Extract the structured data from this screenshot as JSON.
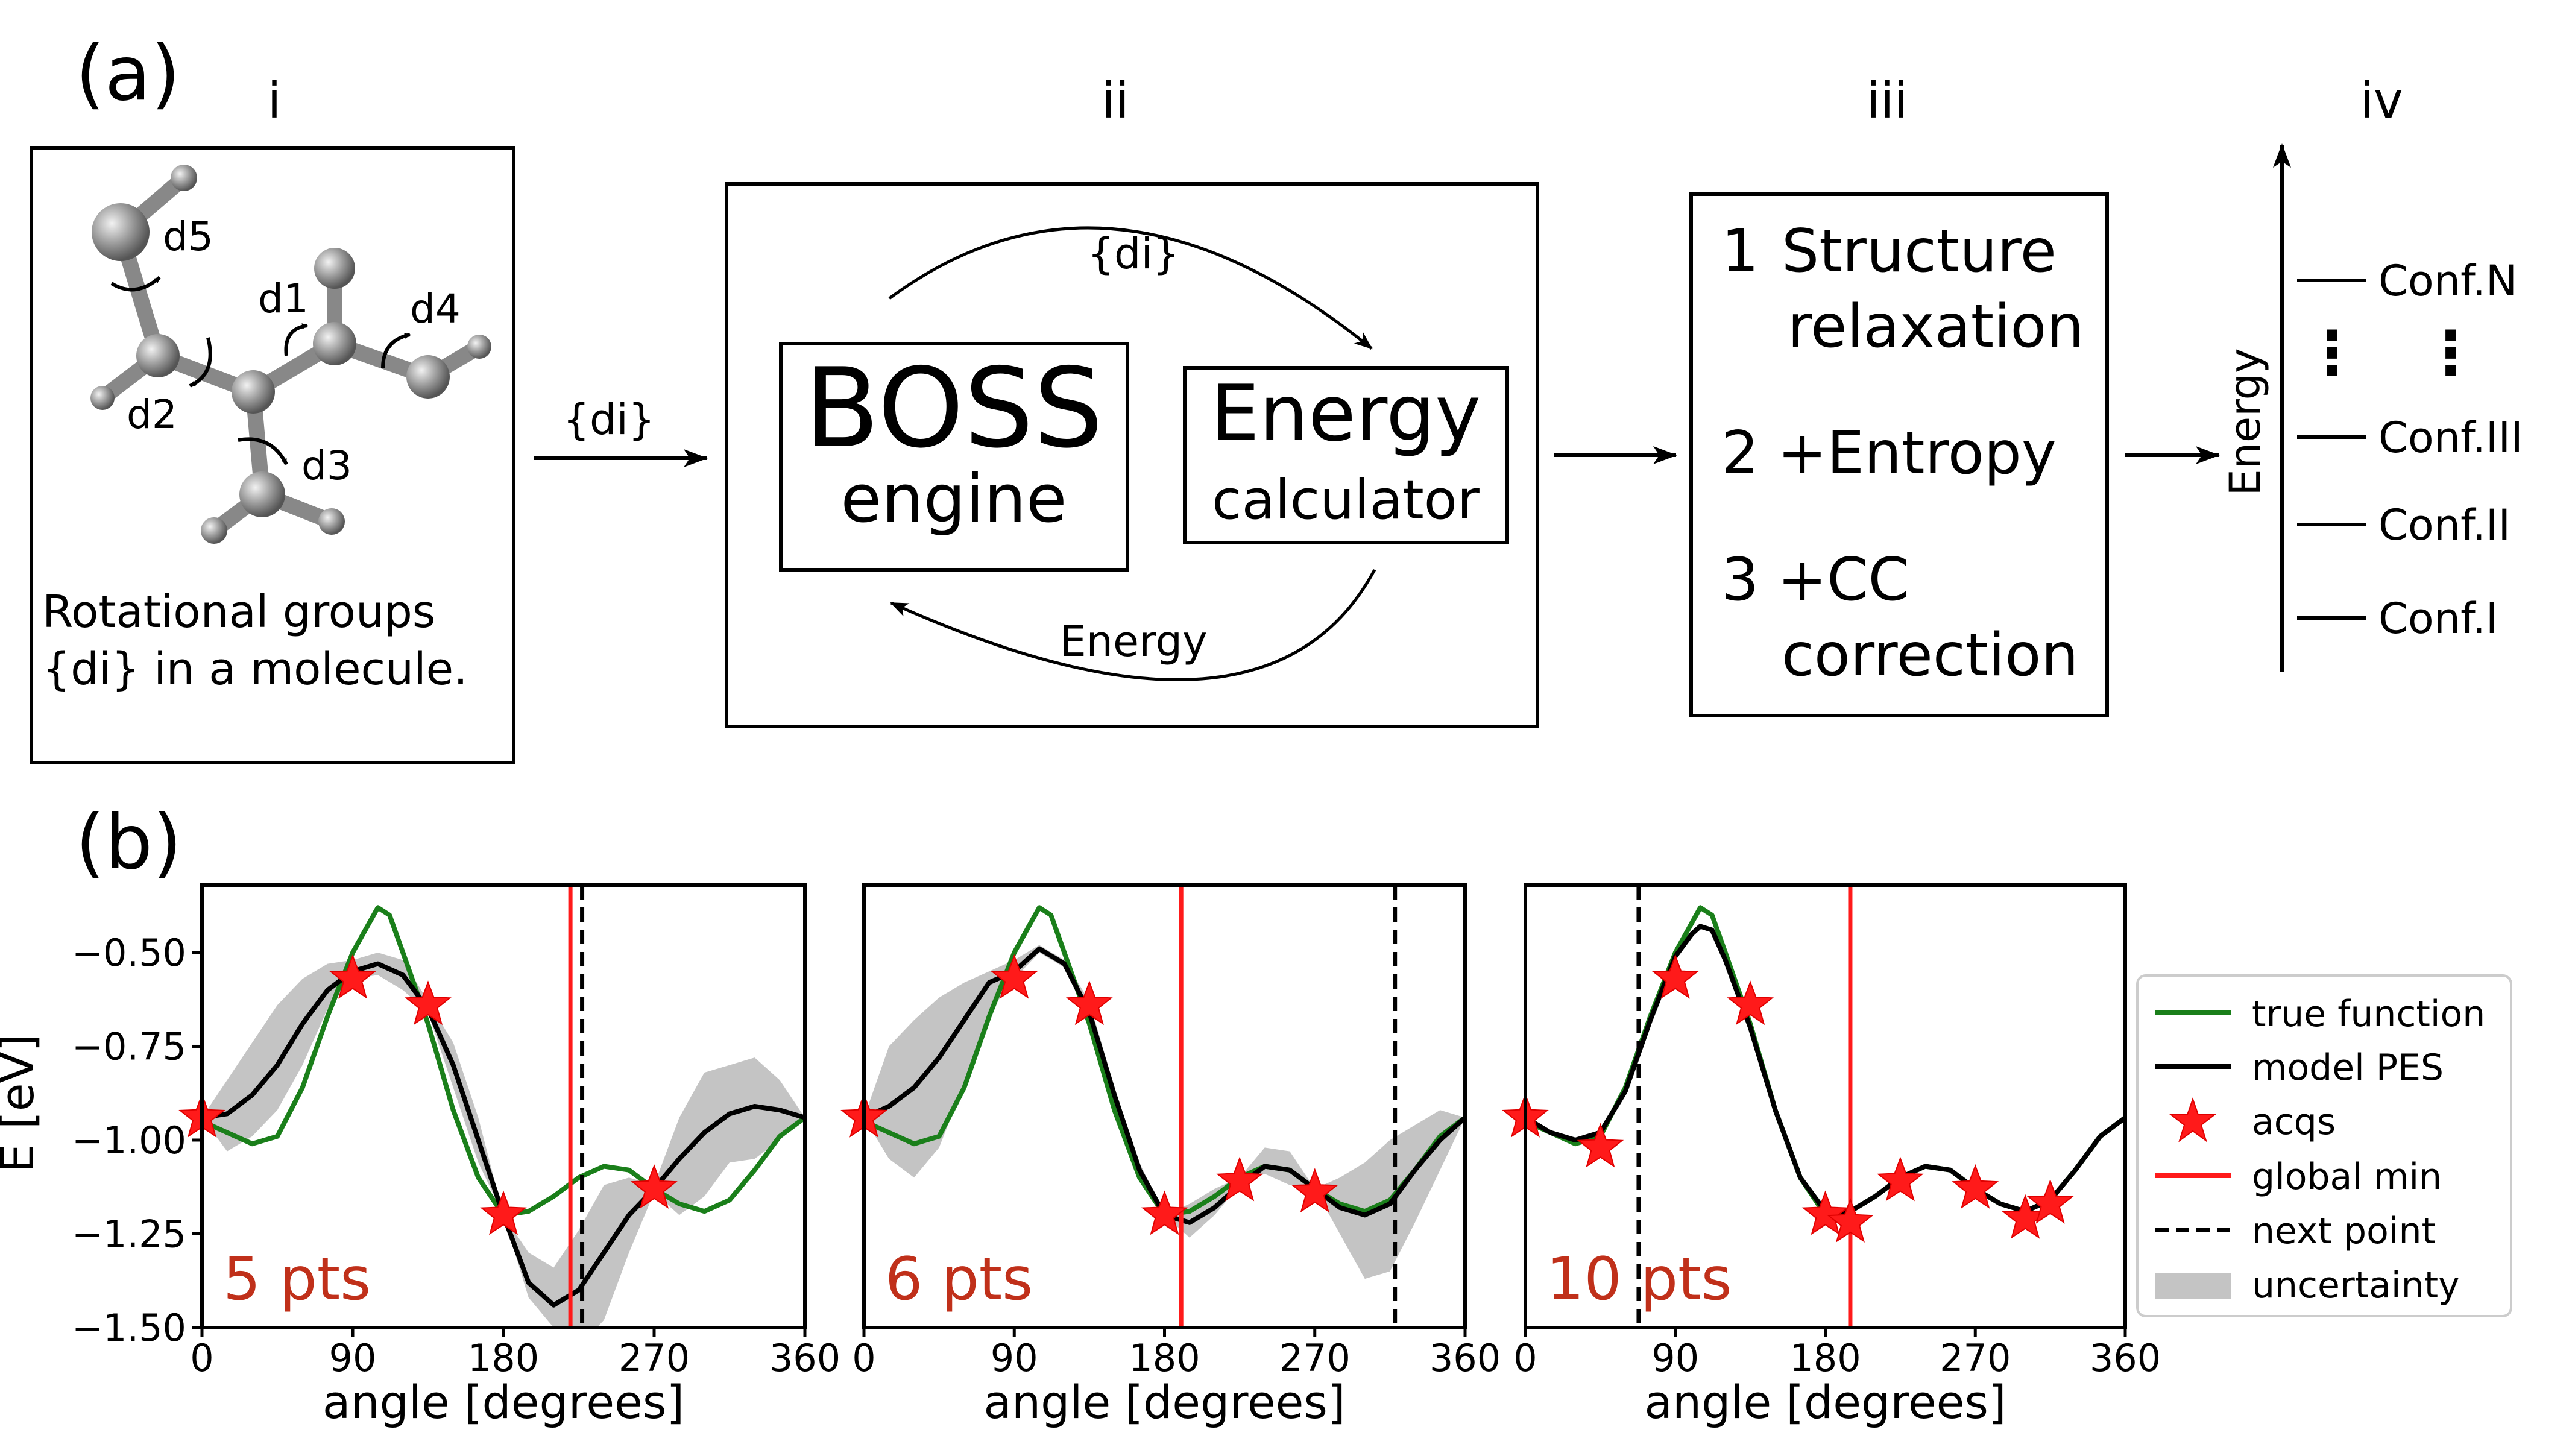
{
  "panel_a": {
    "label": "(a)",
    "sections": [
      "i",
      "ii",
      "iii",
      "iv"
    ],
    "molecule": {
      "groups": [
        "d1",
        "d2",
        "d3",
        "d4",
        "d5"
      ],
      "caption_line1": "Rotational groups",
      "caption_line2": "{di} in a molecule."
    },
    "arrow_label": "{di}",
    "boss": {
      "title": "BOSS",
      "subtitle": "engine"
    },
    "energy_calc": {
      "line1": "Energy",
      "line2": "calculator"
    },
    "loop_top_label": "{di}",
    "loop_bottom_label": "Energy",
    "steps": [
      {
        "num": "1",
        "line1": "Structure",
        "line2": "relaxation"
      },
      {
        "num": "2",
        "line1": "+Entropy",
        "line2": ""
      },
      {
        "num": "3",
        "line1": "+CC",
        "line2": "correction"
      }
    ],
    "energy_axis_label": "Energy",
    "levels": [
      "Conf.N",
      "Conf.III",
      "Conf.II",
      "Conf.I"
    ],
    "dots": "⋮"
  },
  "panel_b": {
    "label": "(b)",
    "ylabel": "E [eV]",
    "xlabel": "angle [degrees]",
    "legend": [
      "true function",
      "model PES",
      "acqs",
      "global min",
      "next point",
      "uncertainty"
    ],
    "colors": {
      "true": "#1a7f1a",
      "model": "#000000",
      "acq": "#ff1a1a",
      "globalmin": "#ff1a1a",
      "label": "#c0301a",
      "band": "#c4c4c4"
    }
  },
  "chart_data": [
    {
      "type": "line",
      "title": "5 pts",
      "xlabel": "angle [degrees]",
      "ylabel": "E [eV]",
      "xlim": [
        0,
        360
      ],
      "ylim": [
        -1.5,
        -0.32
      ],
      "xticks": [
        0,
        90,
        180,
        270,
        360
      ],
      "yticks": [
        -0.5,
        -0.75,
        -1.0,
        -1.25,
        -1.5
      ],
      "ytick_labels": [
        "−0.50",
        "−0.75",
        "−1.00",
        "−1.25",
        "−1.50"
      ],
      "true_function": {
        "x": [
          0,
          15,
          30,
          45,
          60,
          75,
          90,
          100,
          105,
          112,
          120,
          135,
          150,
          165,
          180,
          195,
          210,
          225,
          240,
          255,
          270,
          285,
          300,
          315,
          330,
          345,
          360
        ],
        "y": [
          -0.95,
          -0.98,
          -1.01,
          -0.99,
          -0.86,
          -0.67,
          -0.5,
          -0.42,
          -0.38,
          -0.4,
          -0.5,
          -0.69,
          -0.92,
          -1.1,
          -1.2,
          -1.19,
          -1.15,
          -1.1,
          -1.07,
          -1.08,
          -1.13,
          -1.17,
          -1.19,
          -1.16,
          -1.08,
          -0.99,
          -0.94
        ]
      },
      "model_pes": {
        "x": [
          0,
          15,
          30,
          45,
          60,
          75,
          90,
          105,
          120,
          135,
          150,
          165,
          180,
          195,
          210,
          225,
          240,
          255,
          270,
          285,
          300,
          315,
          330,
          345,
          360
        ],
        "y": [
          -0.94,
          -0.93,
          -0.88,
          -0.8,
          -0.69,
          -0.6,
          -0.55,
          -0.53,
          -0.56,
          -0.65,
          -0.8,
          -1.0,
          -1.2,
          -1.38,
          -1.44,
          -1.4,
          -1.3,
          -1.2,
          -1.13,
          -1.05,
          -0.98,
          -0.93,
          -0.91,
          -0.92,
          -0.94
        ]
      },
      "uncertainty": {
        "x": [
          0,
          15,
          30,
          45,
          60,
          75,
          90,
          105,
          120,
          135,
          150,
          165,
          180,
          195,
          210,
          225,
          240,
          255,
          270,
          285,
          300,
          315,
          330,
          345,
          360
        ],
        "lower": [
          -0.94,
          -1.03,
          -0.99,
          -0.92,
          -0.8,
          -0.65,
          -0.57,
          -0.56,
          -0.6,
          -0.66,
          -0.86,
          -1.06,
          -1.2,
          -1.42,
          -1.5,
          -1.55,
          -1.48,
          -1.3,
          -1.14,
          -1.2,
          -1.15,
          -1.06,
          -1.05,
          -1.0,
          -0.94
        ]
      },
      "uncertainty_upper": [
        -0.94,
        -0.84,
        -0.74,
        -0.64,
        -0.57,
        -0.53,
        -0.52,
        -0.5,
        -0.52,
        -0.63,
        -0.74,
        -0.94,
        -1.2,
        -1.3,
        -1.34,
        -1.24,
        -1.12,
        -1.1,
        -1.12,
        -0.94,
        -0.82,
        -0.8,
        -0.78,
        -0.84,
        -0.94
      ],
      "acqs": {
        "x": [
          0,
          90,
          135,
          180,
          270
        ],
        "y": [
          -0.94,
          -0.57,
          -0.64,
          -1.2,
          -1.13
        ]
      },
      "global_min_x": 220,
      "next_point_x": 227
    },
    {
      "type": "line",
      "title": "6 pts",
      "xlabel": "angle [degrees]",
      "ylabel": "E [eV]",
      "xlim": [
        0,
        360
      ],
      "ylim": [
        -1.5,
        -0.32
      ],
      "xticks": [
        0,
        90,
        180,
        270,
        360
      ],
      "true_function": {
        "x": [
          0,
          15,
          30,
          45,
          60,
          75,
          90,
          100,
          105,
          112,
          120,
          135,
          150,
          165,
          180,
          195,
          210,
          225,
          240,
          255,
          270,
          285,
          300,
          315,
          330,
          345,
          360
        ],
        "y": [
          -0.95,
          -0.98,
          -1.01,
          -0.99,
          -0.86,
          -0.67,
          -0.5,
          -0.42,
          -0.38,
          -0.4,
          -0.5,
          -0.69,
          -0.92,
          -1.1,
          -1.2,
          -1.19,
          -1.15,
          -1.1,
          -1.07,
          -1.08,
          -1.13,
          -1.17,
          -1.19,
          -1.16,
          -1.08,
          -0.99,
          -0.94
        ]
      },
      "model_pes": {
        "x": [
          0,
          15,
          30,
          45,
          60,
          75,
          90,
          105,
          120,
          135,
          150,
          165,
          180,
          195,
          210,
          225,
          240,
          255,
          270,
          285,
          300,
          315,
          330,
          345,
          360
        ],
        "y": [
          -0.94,
          -0.91,
          -0.86,
          -0.78,
          -0.68,
          -0.58,
          -0.55,
          -0.49,
          -0.53,
          -0.66,
          -0.88,
          -1.08,
          -1.2,
          -1.22,
          -1.18,
          -1.12,
          -1.07,
          -1.08,
          -1.13,
          -1.18,
          -1.2,
          -1.17,
          -1.08,
          -1.0,
          -0.94
        ]
      },
      "uncertainty": {
        "x": [
          0,
          15,
          30,
          45,
          60,
          75,
          90,
          105,
          120,
          135,
          150,
          165,
          180,
          195,
          210,
          225,
          240,
          255,
          270,
          285,
          300,
          315,
          330,
          345,
          360
        ],
        "lower": [
          -0.94,
          -1.05,
          -1.1,
          -1.02,
          -0.85,
          -0.66,
          -0.57,
          -0.5,
          -0.54,
          -0.65,
          -0.88,
          -1.08,
          -1.2,
          -1.26,
          -1.2,
          -1.12,
          -1.09,
          -1.12,
          -1.13,
          -1.25,
          -1.37,
          -1.35,
          -1.22,
          -1.08,
          -0.94
        ]
      },
      "uncertainty_upper": [
        -0.94,
        -0.75,
        -0.68,
        -0.62,
        -0.58,
        -0.55,
        -0.52,
        -0.48,
        -0.52,
        -0.63,
        -0.86,
        -1.06,
        -1.2,
        -1.17,
        -1.13,
        -1.1,
        -1.02,
        -1.03,
        -1.13,
        -1.1,
        -1.06,
        -1.0,
        -0.96,
        -0.92,
        -0.94
      ],
      "acqs": {
        "x": [
          0,
          90,
          135,
          180,
          225,
          270
        ],
        "y": [
          -0.94,
          -0.57,
          -0.64,
          -1.2,
          -1.11,
          -1.14
        ]
      },
      "global_min_x": 190,
      "next_point_x": 318
    },
    {
      "type": "line",
      "title": "10 pts",
      "xlabel": "angle [degrees]",
      "ylabel": "E [eV]",
      "xlim": [
        0,
        360
      ],
      "ylim": [
        -1.5,
        -0.32
      ],
      "xticks": [
        0,
        90,
        180,
        270,
        360
      ],
      "true_function": {
        "x": [
          0,
          15,
          30,
          45,
          60,
          75,
          90,
          100,
          105,
          112,
          120,
          135,
          150,
          165,
          180,
          195,
          210,
          225,
          240,
          255,
          270,
          285,
          300,
          315,
          330,
          345,
          360
        ],
        "y": [
          -0.95,
          -0.98,
          -1.01,
          -0.99,
          -0.86,
          -0.67,
          -0.5,
          -0.42,
          -0.38,
          -0.4,
          -0.5,
          -0.69,
          -0.92,
          -1.1,
          -1.2,
          -1.19,
          -1.15,
          -1.1,
          -1.07,
          -1.08,
          -1.13,
          -1.17,
          -1.19,
          -1.16,
          -1.08,
          -0.99,
          -0.94
        ]
      },
      "model_pes": {
        "x": [
          0,
          15,
          30,
          45,
          60,
          75,
          90,
          100,
          105,
          112,
          120,
          135,
          150,
          165,
          180,
          195,
          210,
          225,
          240,
          255,
          270,
          285,
          300,
          315,
          330,
          345,
          360
        ],
        "y": [
          -0.94,
          -0.98,
          -1.0,
          -0.98,
          -0.87,
          -0.68,
          -0.51,
          -0.45,
          -0.43,
          -0.44,
          -0.52,
          -0.7,
          -0.92,
          -1.1,
          -1.19,
          -1.19,
          -1.15,
          -1.1,
          -1.07,
          -1.08,
          -1.13,
          -1.17,
          -1.19,
          -1.16,
          -1.08,
          -0.99,
          -0.94
        ]
      },
      "acqs": {
        "x": [
          0,
          45,
          90,
          135,
          180,
          195,
          225,
          270,
          300,
          315
        ],
        "y": [
          -0.94,
          -1.02,
          -0.57,
          -0.64,
          -1.2,
          -1.22,
          -1.11,
          -1.13,
          -1.21,
          -1.17
        ]
      },
      "global_min_x": 195,
      "next_point_x": 68
    }
  ]
}
